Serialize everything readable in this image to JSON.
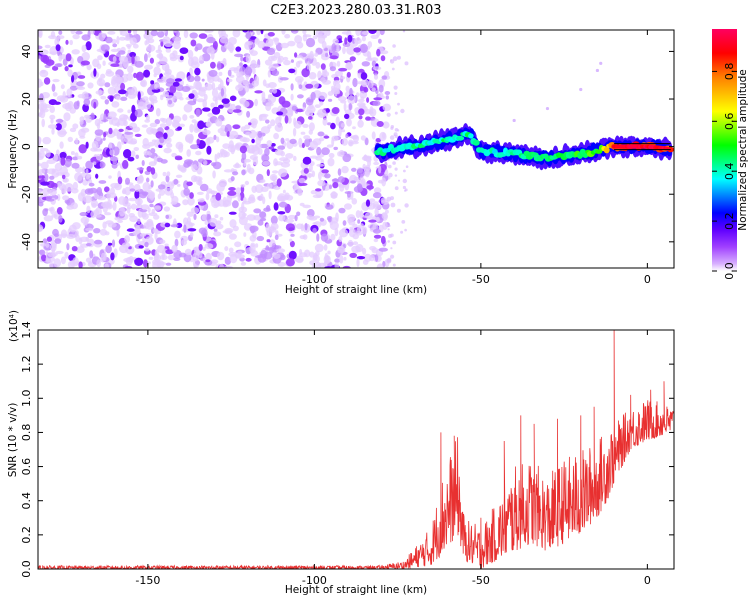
{
  "title": "C2E3.2023.280.03.31.R03",
  "chart_data": [
    {
      "type": "heatmap",
      "xlabel": "Height of straight line (km)",
      "ylabel": "Frequency (Hz)",
      "xlim": [
        -183,
        8
      ],
      "ylim": [
        -51,
        49
      ],
      "xticks": [
        -150,
        -100,
        -50,
        0
      ],
      "yticks": [
        -40,
        -20,
        0,
        20,
        40
      ],
      "colorbar": {
        "label": "Normalized spectral amplitude",
        "range": [
          0,
          0.97
        ],
        "ticks": [
          "0.0",
          "0.2",
          "0.4",
          "0.6",
          "0.8"
        ],
        "tick_values": [
          0,
          0.2,
          0.4,
          0.6,
          0.8
        ]
      },
      "colormap": [
        "#ffffff",
        "#e6c8ff",
        "#a040ff",
        "#6000ff",
        "#0000ff",
        "#00ffff",
        "#00ff00",
        "#ffff00",
        "#ff8000",
        "#ff0000",
        "#ff0060"
      ],
      "noise_region": {
        "x_range": [
          -183,
          -78
        ],
        "y_range": [
          -51,
          49
        ],
        "amplitude": 0.25
      },
      "signal_track": [
        {
          "x": -81,
          "y": -2
        },
        {
          "x": -70,
          "y": 0
        },
        {
          "x": -60,
          "y": 3
        },
        {
          "x": -53,
          "y": 5
        },
        {
          "x": -50,
          "y": -2
        },
        {
          "x": -40,
          "y": -3
        },
        {
          "x": -30,
          "y": -5
        },
        {
          "x": -20,
          "y": -3
        },
        {
          "x": -10,
          "y": 0
        },
        {
          "x": 0,
          "y": 0
        },
        {
          "x": 7,
          "y": -1
        }
      ],
      "signal_amplitude": [
        {
          "x": -81,
          "a": 0.4
        },
        {
          "x": -55,
          "a": 0.45
        },
        {
          "x": -50,
          "a": 0.4
        },
        {
          "x": -15,
          "a": 0.55
        },
        {
          "x": -10,
          "a": 0.9
        },
        {
          "x": 0,
          "a": 0.95
        },
        {
          "x": 7,
          "a": 0.9
        }
      ],
      "faint_arc": [
        {
          "x": -40,
          "y": 11
        },
        {
          "x": -30,
          "y": 16
        },
        {
          "x": -20,
          "y": 24
        },
        {
          "x": -15,
          "y": 32
        },
        {
          "x": -14,
          "y": 35
        }
      ]
    },
    {
      "type": "line",
      "xlabel": "Height of straight line (km)",
      "ylabel": "SNR (10 * v/v)",
      "scale_label": "(x10⁴)",
      "xlim": [
        -183,
        8
      ],
      "ylim": [
        0,
        1.4
      ],
      "xticks": [
        -150,
        -100,
        -50,
        0
      ],
      "yticks": [
        0,
        0.2,
        0.4,
        0.6,
        0.8,
        1.0,
        1.2,
        1.4
      ],
      "ytick_labels": [
        "0.0",
        "0.2",
        "0.4",
        "0.6",
        "0.8",
        "1.0",
        "1.2",
        "1.4"
      ],
      "line_color": "#e83030",
      "envelope": [
        {
          "x": -183,
          "lo": 0.0,
          "hi": 0.02
        },
        {
          "x": -80,
          "lo": 0.0,
          "hi": 0.02
        },
        {
          "x": -73,
          "lo": 0.0,
          "hi": 0.05
        },
        {
          "x": -65,
          "lo": 0.02,
          "hi": 0.25
        },
        {
          "x": -61,
          "lo": 0.1,
          "hi": 0.6
        },
        {
          "x": -57,
          "lo": 0.2,
          "hi": 0.78
        },
        {
          "x": -55,
          "lo": 0.05,
          "hi": 0.3
        },
        {
          "x": -50,
          "lo": 0.0,
          "hi": 0.25
        },
        {
          "x": -45,
          "lo": 0.05,
          "hi": 0.4
        },
        {
          "x": -40,
          "lo": 0.1,
          "hi": 0.6
        },
        {
          "x": -35,
          "lo": 0.15,
          "hi": 0.65
        },
        {
          "x": -30,
          "lo": 0.1,
          "hi": 0.55
        },
        {
          "x": -25,
          "lo": 0.15,
          "hi": 0.65
        },
        {
          "x": -20,
          "lo": 0.2,
          "hi": 0.7
        },
        {
          "x": -15,
          "lo": 0.3,
          "hi": 0.75
        },
        {
          "x": -12,
          "lo": 0.4,
          "hi": 0.85
        },
        {
          "x": -10,
          "lo": 0.5,
          "hi": 0.85
        },
        {
          "x": -5,
          "lo": 0.7,
          "hi": 0.95
        },
        {
          "x": 0,
          "lo": 0.75,
          "hi": 1.0
        },
        {
          "x": 8,
          "lo": 0.8,
          "hi": 0.95
        }
      ],
      "peaks": [
        {
          "x": -62,
          "y": 0.8
        },
        {
          "x": -58,
          "y": 0.78
        },
        {
          "x": -50,
          "y": 0.3
        },
        {
          "x": -43,
          "y": 0.75
        },
        {
          "x": -38,
          "y": 0.9
        },
        {
          "x": -34,
          "y": 0.85
        },
        {
          "x": -27,
          "y": 0.88
        },
        {
          "x": -20,
          "y": 0.9
        },
        {
          "x": -16,
          "y": 0.95
        },
        {
          "x": -10,
          "y": 1.4
        },
        {
          "x": -5,
          "y": 1.02
        },
        {
          "x": 1,
          "y": 1.05
        },
        {
          "x": 5,
          "y": 1.1
        }
      ]
    }
  ]
}
